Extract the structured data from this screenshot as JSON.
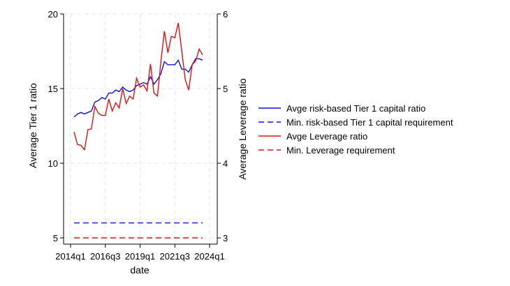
{
  "chart_data": {
    "type": "line",
    "xlabel": "date",
    "ylabel_left": "Average Tier 1 ratio",
    "ylabel_right": "Average Leverage ratio",
    "xlim": [
      "2014q1",
      "2024q1"
    ],
    "ylim_left": [
      5,
      20
    ],
    "ylim_right": [
      3,
      6
    ],
    "x_ticks": [
      "2014q1",
      "2016q3",
      "2019q1",
      "2021q3",
      "2024q1"
    ],
    "y_ticks_left": [
      "5",
      "10",
      "15",
      "20"
    ],
    "y_ticks_right": [
      "3",
      "4",
      "5",
      "6"
    ],
    "grid": true,
    "legend_position": "right",
    "x": [
      "2014q2",
      "2014q3",
      "2014q4",
      "2015q1",
      "2015q2",
      "2015q3",
      "2015q4",
      "2016q1",
      "2016q2",
      "2016q3",
      "2016q4",
      "2017q1",
      "2017q2",
      "2017q3",
      "2017q4",
      "2018q1",
      "2018q2",
      "2018q3",
      "2018q4",
      "2019q1",
      "2019q2",
      "2019q3",
      "2019q4",
      "2020q1",
      "2020q2",
      "2020q3",
      "2020q4",
      "2021q1",
      "2021q2",
      "2021q3",
      "2021q4",
      "2022q1",
      "2022q2",
      "2022q3",
      "2022q4",
      "2023q1",
      "2023q2",
      "2023q3"
    ],
    "series": [
      {
        "name": "Avge risk-based Tier 1 capital ratio",
        "axis": "left",
        "color": "#1010e0",
        "dash": "solid",
        "values": [
          13.1,
          13.3,
          13.4,
          13.3,
          13.4,
          13.5,
          14.1,
          14.2,
          14.4,
          14.3,
          14.7,
          14.7,
          14.9,
          14.8,
          15.1,
          14.9,
          14.8,
          14.9,
          15.2,
          15.3,
          15.4,
          15.3,
          15.8,
          15.3,
          15.6,
          16.0,
          16.8,
          16.6,
          16.6,
          16.6,
          16.9,
          16.3,
          16.3,
          16.1,
          16.6,
          17.0,
          17.0,
          16.9
        ]
      },
      {
        "name": "Min. risk-based Tier 1 capital requirement",
        "axis": "left",
        "color": "#1010e0",
        "dash": "dashed",
        "values": [
          6,
          6,
          6,
          6,
          6,
          6,
          6,
          6,
          6,
          6,
          6,
          6,
          6,
          6,
          6,
          6,
          6,
          6,
          6,
          6,
          6,
          6,
          6,
          6,
          6,
          6,
          6,
          6,
          6,
          6,
          6,
          6,
          6,
          6,
          6,
          6,
          6,
          6
        ]
      },
      {
        "name": "Avge Leverage ratio",
        "axis": "right",
        "color": "#e01010",
        "dash": "solid",
        "values": [
          4.42,
          4.25,
          4.24,
          4.18,
          4.45,
          4.46,
          4.76,
          4.67,
          4.64,
          4.64,
          4.86,
          4.7,
          4.81,
          4.74,
          5.0,
          4.8,
          4.9,
          4.86,
          5.14,
          5.02,
          5.05,
          4.97,
          5.33,
          4.94,
          4.9,
          5.36,
          5.77,
          5.48,
          5.7,
          5.68,
          5.88,
          5.5,
          5.12,
          4.98,
          5.32,
          5.37,
          5.53,
          5.45
        ]
      },
      {
        "name": "Min. Leverage requirement",
        "axis": "right",
        "color": "#e01010",
        "dash": "dashed",
        "values": [
          3,
          3,
          3,
          3,
          3,
          3,
          3,
          3,
          3,
          3,
          3,
          3,
          3,
          3,
          3,
          3,
          3,
          3,
          3,
          3,
          3,
          3,
          3,
          3,
          3,
          3,
          3,
          3,
          3,
          3,
          3,
          3,
          3,
          3,
          3,
          3,
          3,
          3
        ]
      }
    ]
  }
}
